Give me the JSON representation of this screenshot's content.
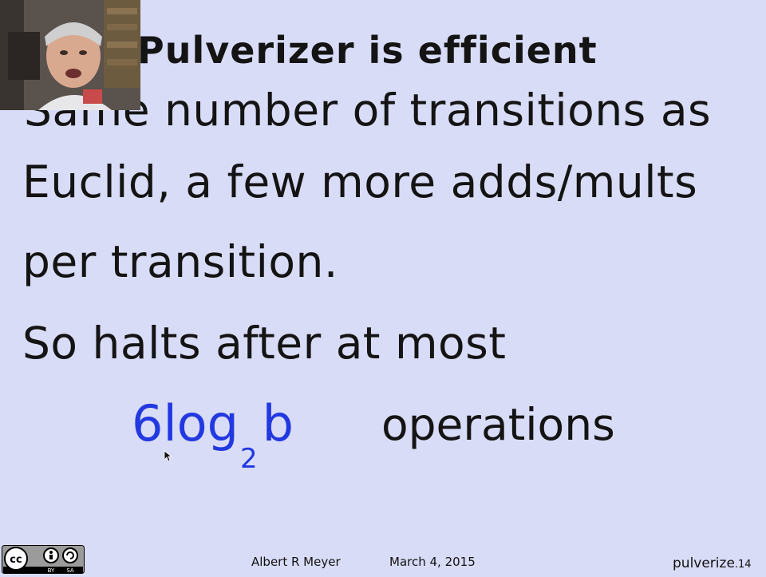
{
  "slide": {
    "title": "Pulverizer is efficient",
    "body_lines": [
      "Same number of transitions as",
      "Euclid, a few more adds/mults",
      "per transition.",
      "So halts after at most"
    ],
    "formula": {
      "coef": "6",
      "fn": "log",
      "base": "2",
      "arg": "b"
    },
    "formula_suffix": "operations"
  },
  "footer": {
    "author": "Albert R Meyer",
    "date": "March 4, 2015",
    "slide_id": "pulverize",
    "slide_num": ".14"
  },
  "license": {
    "badges": [
      "cc",
      "BY",
      "SA"
    ]
  },
  "colors": {
    "background": "#d9dcf6",
    "text": "#141414",
    "formula": "#2238e0"
  },
  "icons": [
    "webcam-overlay",
    "mouse-cursor-icon",
    "cc-license-icon"
  ]
}
